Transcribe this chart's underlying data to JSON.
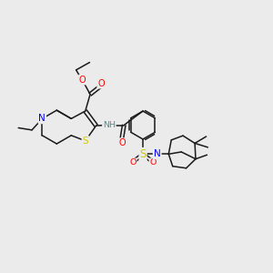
{
  "background_color": "#ebebeb",
  "dpi": 100,
  "colors": {
    "carbon": "#1a1a1a",
    "nitrogen": "#0000ff",
    "oxygen": "#ff0000",
    "sulfur_atom": "#cccc00",
    "sulfur_bond": "#1a1a1a",
    "hydrogen": "#4a9090",
    "bond": "#1a1a1a"
  },
  "xlim": [
    0,
    10
  ],
  "ylim": [
    0,
    10
  ]
}
